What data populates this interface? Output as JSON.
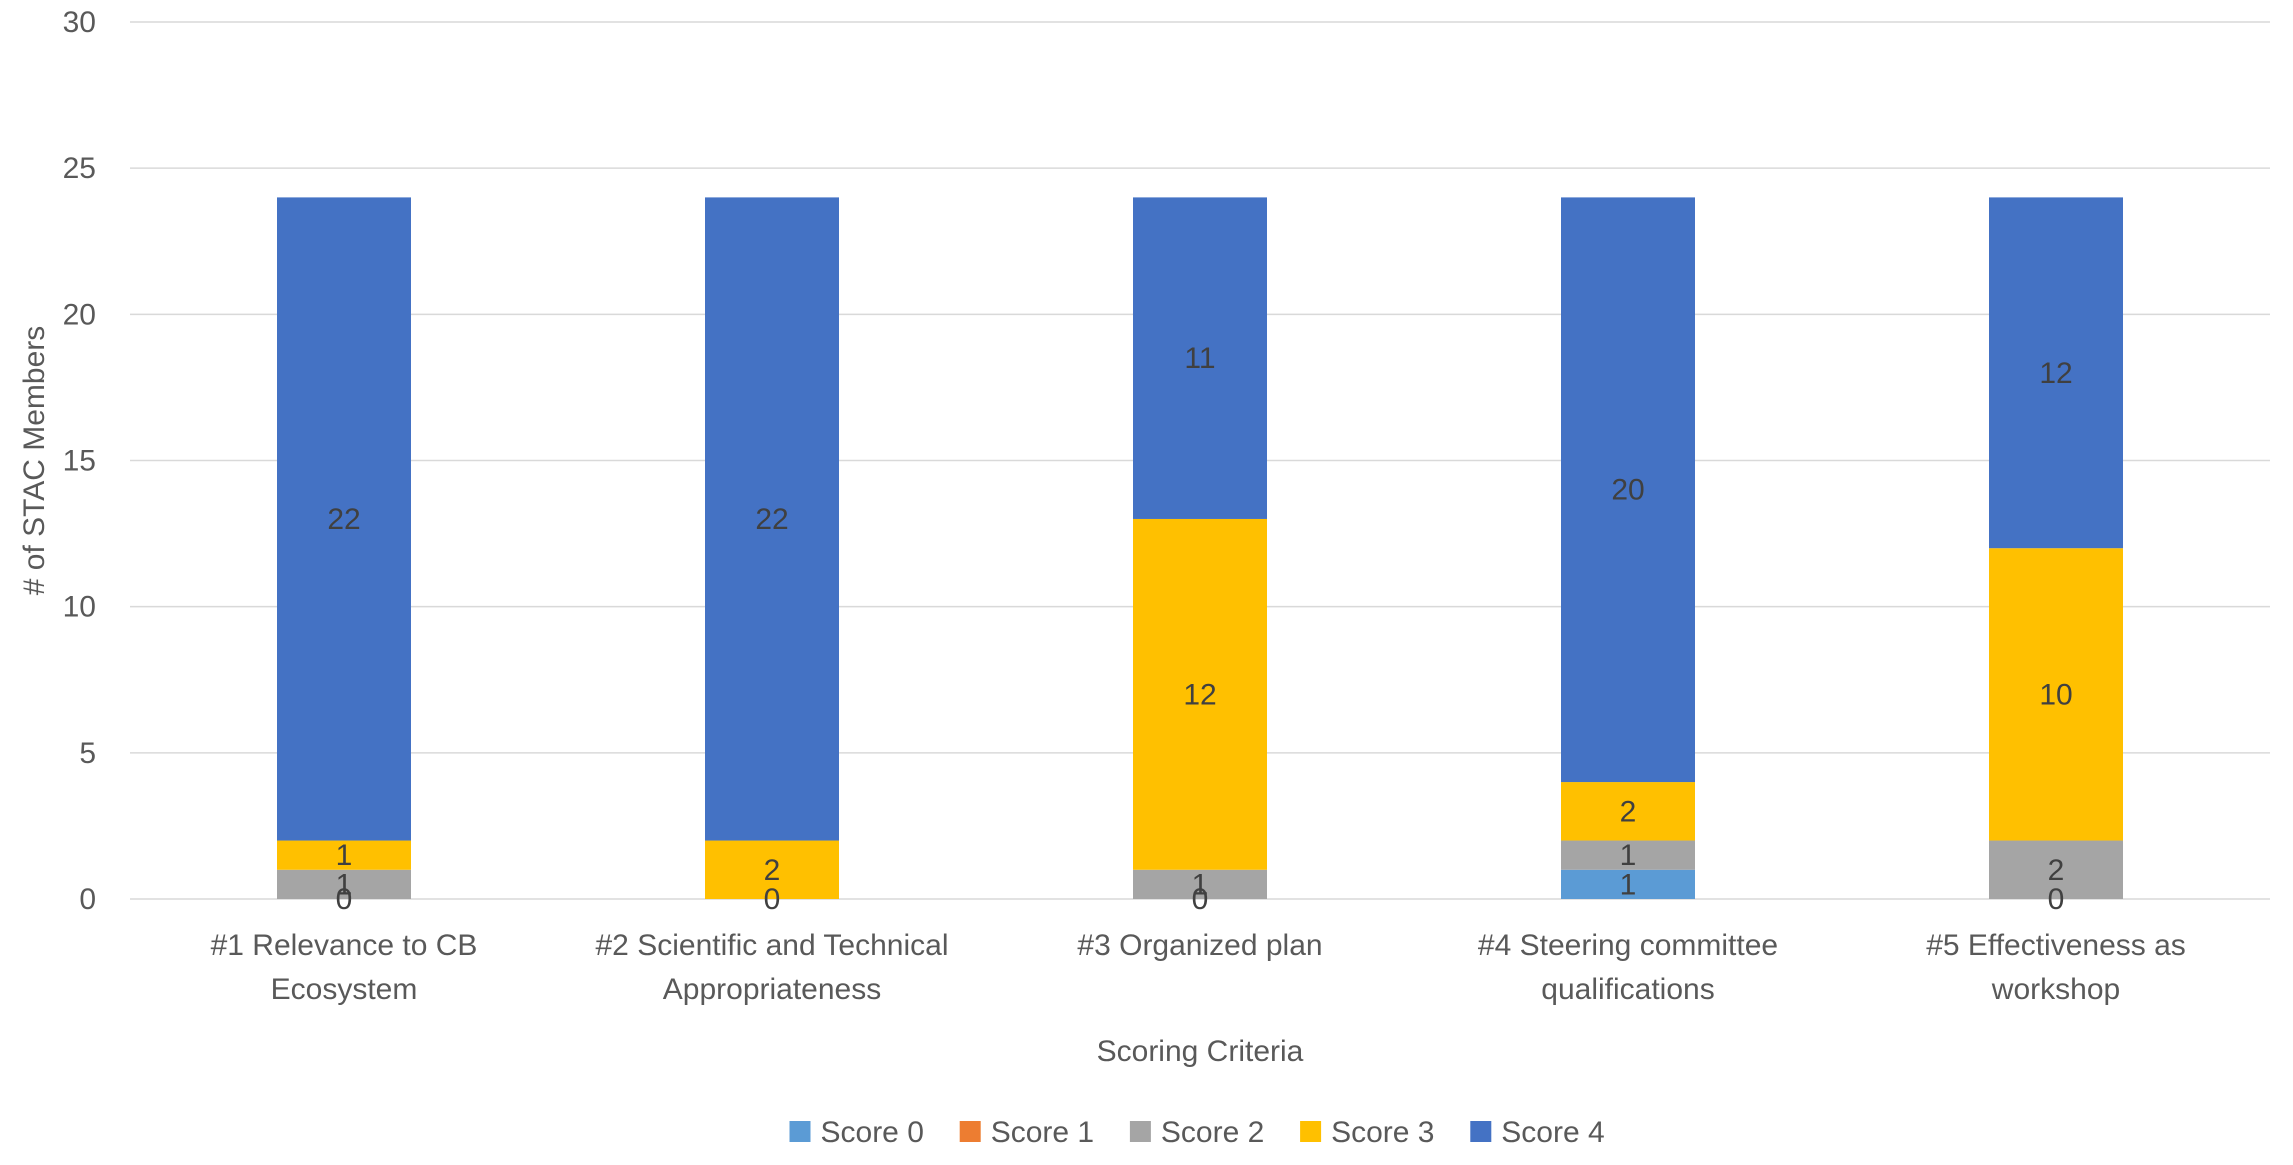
{
  "chart_data": {
    "type": "bar",
    "stacked": true,
    "title": "",
    "xlabel": "Scoring Criteria",
    "ylabel": "# of STAC Members",
    "ylim": [
      0,
      30
    ],
    "yticks": [
      0,
      5,
      10,
      15,
      20,
      25,
      30
    ],
    "grid": true,
    "legend_position": "bottom",
    "categories": [
      [
        "#1 Relevance to CB",
        "Ecosystem"
      ],
      [
        "#2 Scientific and Technical",
        "Appropriateness"
      ],
      [
        "#3 Organized plan"
      ],
      [
        "#4 Steering committee",
        "qualifications"
      ],
      [
        "#5 Effectiveness as",
        "workshop"
      ]
    ],
    "series": [
      {
        "name": "Score 0",
        "color": "#5B9BD5",
        "values": [
          0,
          0,
          0,
          1,
          0
        ]
      },
      {
        "name": "Score 1",
        "color": "#ED7D31",
        "values": [
          0,
          0,
          0,
          0,
          0
        ]
      },
      {
        "name": "Score 2",
        "color": "#A5A5A5",
        "values": [
          1,
          0,
          1,
          1,
          2
        ]
      },
      {
        "name": "Score 3",
        "color": "#FFC000",
        "values": [
          1,
          2,
          12,
          2,
          10
        ]
      },
      {
        "name": "Score 4",
        "color": "#4472C4",
        "values": [
          22,
          22,
          11,
          20,
          12
        ]
      }
    ],
    "data_labels": [
      [
        {
          "series": 4,
          "text": "22"
        },
        {
          "series": 3,
          "text": "1"
        },
        {
          "series": 2,
          "text": "1"
        },
        {
          "series": 1,
          "text": "0"
        }
      ],
      [
        {
          "series": 4,
          "text": "22"
        },
        {
          "series": 3,
          "text": "2"
        },
        {
          "series": 2,
          "text": "0"
        }
      ],
      [
        {
          "series": 4,
          "text": "11"
        },
        {
          "series": 3,
          "text": "12"
        },
        {
          "series": 2,
          "text": "1"
        },
        {
          "series": 1,
          "text": "0"
        }
      ],
      [
        {
          "series": 4,
          "text": "20"
        },
        {
          "series": 3,
          "text": "2"
        },
        {
          "series": 2,
          "text": "1"
        },
        {
          "series": 0,
          "text": "1"
        }
      ],
      [
        {
          "series": 4,
          "text": "12"
        },
        {
          "series": 3,
          "text": "10"
        },
        {
          "series": 2,
          "text": "2"
        },
        {
          "series": 1,
          "text": "0"
        }
      ]
    ]
  }
}
